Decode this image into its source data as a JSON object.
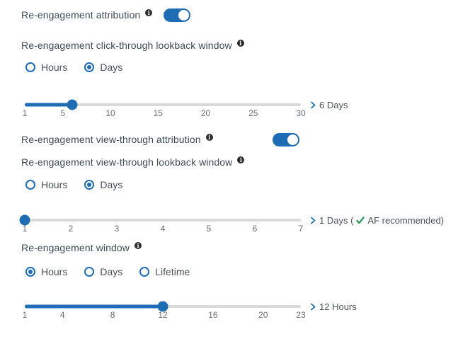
{
  "colors": {
    "accent_blue": "#1e6db4",
    "track_gray": "#d9d9d9",
    "heading_text": "#3f4a55",
    "body_text": "#4b5258",
    "tick_text": "#686d72",
    "check_green": "#2f9e5f",
    "info_icon_bg": "#2d2d2d"
  },
  "icons": {
    "info_glyph": "i"
  },
  "sections": {
    "attribution": {
      "title": "Re-engagement attribution",
      "toggle_on": true
    },
    "click_through": {
      "title": "Re-engagement click-through lookback window",
      "units": [
        {
          "label": "Hours",
          "selected": false
        },
        {
          "label": "Days",
          "selected": true
        }
      ],
      "slider": {
        "min": 1,
        "max": 30,
        "value": 6,
        "ticks": [
          1,
          5,
          10,
          15,
          20,
          25,
          30
        ],
        "value_label": "6 Days"
      }
    },
    "view_through_attribution": {
      "title": "Re-engagement view-through attribution",
      "toggle_on": true
    },
    "view_through": {
      "title": "Re-engagement view-through lookback window",
      "units": [
        {
          "label": "Hours",
          "selected": false
        },
        {
          "label": "Days",
          "selected": true
        }
      ],
      "slider": {
        "min": 1,
        "max": 7,
        "value": 1,
        "ticks": [
          1,
          2,
          3,
          4,
          5,
          6,
          7
        ],
        "value_label_prefix": "1 Days (",
        "value_label_suffix": "AF recommended)"
      }
    },
    "window": {
      "title": "Re-engagement window",
      "units": [
        {
          "label": "Hours",
          "selected": true
        },
        {
          "label": "Days",
          "selected": false
        },
        {
          "label": "Lifetime",
          "selected": false
        }
      ],
      "slider": {
        "min": 1,
        "max": 23,
        "value": 12,
        "ticks": [
          1,
          4,
          8,
          12,
          16,
          20,
          23
        ],
        "value_label": "12 Hours"
      }
    }
  }
}
